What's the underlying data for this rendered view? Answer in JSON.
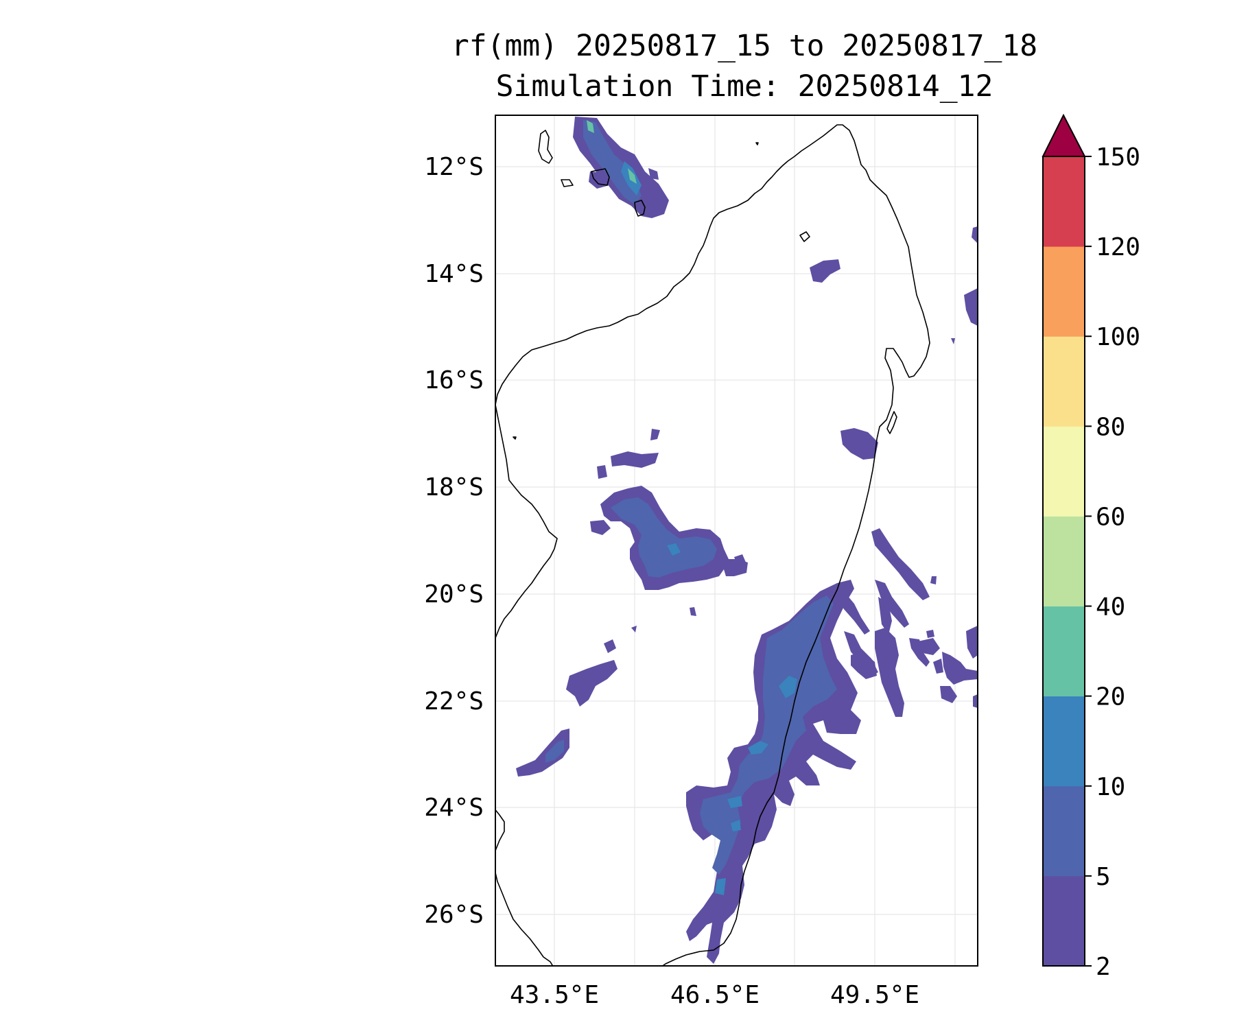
{
  "title": {
    "line1": "rf(mm) 20250817_15 to 20250817_18",
    "line2": "Simulation Time: 20250814_12"
  },
  "map": {
    "lat_labels": [
      "12°S",
      "14°S",
      "16°S",
      "18°S",
      "20°S",
      "22°S",
      "24°S",
      "26°S"
    ],
    "lon_labels": [
      "43.5°E",
      "46.5°E",
      "49.5°E"
    ],
    "extent": {
      "lon": [
        42.45,
        51.5
      ],
      "lat": [
        -26.95,
        -11.05
      ]
    },
    "gridlines": true
  },
  "colorbar": {
    "levels": [
      "2",
      "5",
      "10",
      "20",
      "40",
      "60",
      "80",
      "100",
      "120",
      "150"
    ],
    "colors": [
      "#5e4fa2",
      "#4f65ad",
      "#3a83bd",
      "#66c2a5",
      "#bde2a0",
      "#f3f7b0",
      "#fbe08c",
      "#f9a05c",
      "#d63f4f",
      "#9e0142"
    ],
    "extend": "max"
  },
  "colors": {
    "coastline": "#000000",
    "grid": "#e6e6e6"
  }
}
